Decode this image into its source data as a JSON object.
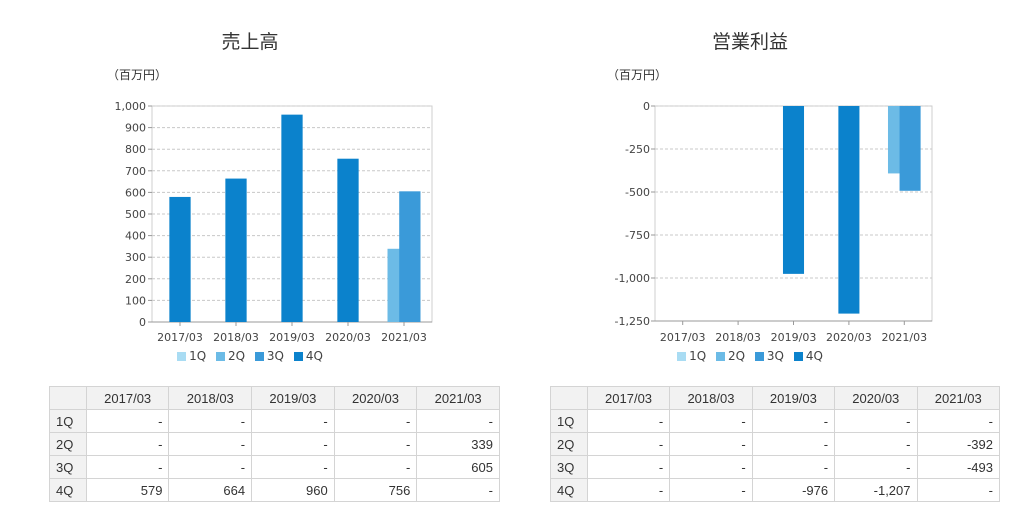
{
  "colors": {
    "q1": "#a9dcf3",
    "q2": "#6cbbe6",
    "q3": "#3a9ad9",
    "q4": "#0b82cc"
  },
  "charts": [
    {
      "title": "売上高",
      "unit": "（百万円）",
      "legend": [
        "1Q",
        "2Q",
        "3Q",
        "4Q"
      ],
      "table": {
        "headers": [
          "2017/03",
          "2018/03",
          "2019/03",
          "2020/03",
          "2021/03"
        ],
        "rows": [
          {
            "label": "1Q",
            "cells": [
              "-",
              "-",
              "-",
              "-",
              "-"
            ]
          },
          {
            "label": "2Q",
            "cells": [
              "-",
              "-",
              "-",
              "-",
              "339"
            ]
          },
          {
            "label": "3Q",
            "cells": [
              "-",
              "-",
              "-",
              "-",
              "605"
            ]
          },
          {
            "label": "4Q",
            "cells": [
              "579",
              "664",
              "960",
              "756",
              "-"
            ]
          }
        ]
      }
    },
    {
      "title": "営業利益",
      "unit": "（百万円）",
      "legend": [
        "1Q",
        "2Q",
        "3Q",
        "4Q"
      ],
      "table": {
        "headers": [
          "2017/03",
          "2018/03",
          "2019/03",
          "2020/03",
          "2021/03"
        ],
        "rows": [
          {
            "label": "1Q",
            "cells": [
              "-",
              "-",
              "-",
              "-",
              "-"
            ]
          },
          {
            "label": "2Q",
            "cells": [
              "-",
              "-",
              "-",
              "-",
              "-392"
            ]
          },
          {
            "label": "3Q",
            "cells": [
              "-",
              "-",
              "-",
              "-",
              "-493"
            ]
          },
          {
            "label": "4Q",
            "cells": [
              "-",
              "-",
              "-976",
              "-1,207",
              "-"
            ]
          }
        ]
      }
    }
  ],
  "chart_data": [
    {
      "type": "bar",
      "title": "売上高",
      "ylabel": "（百万円）",
      "categories": [
        "2017/03",
        "2018/03",
        "2019/03",
        "2020/03",
        "2021/03"
      ],
      "ylim": [
        0,
        1000
      ],
      "yticks": [
        0,
        100,
        200,
        300,
        400,
        500,
        600,
        700,
        800,
        900,
        1000
      ],
      "ytick_labels": [
        "0",
        "100",
        "200",
        "300",
        "400",
        "500",
        "600",
        "700",
        "800",
        "900",
        "1,000"
      ],
      "grid": true,
      "legend": "bottom",
      "series": [
        {
          "name": "1Q",
          "values": [
            null,
            null,
            null,
            null,
            null
          ]
        },
        {
          "name": "2Q",
          "values": [
            null,
            null,
            null,
            null,
            339
          ]
        },
        {
          "name": "3Q",
          "values": [
            null,
            null,
            null,
            null,
            605
          ]
        },
        {
          "name": "4Q",
          "values": [
            579,
            664,
            960,
            756,
            null
          ]
        }
      ]
    },
    {
      "type": "bar",
      "title": "営業利益",
      "ylabel": "（百万円）",
      "categories": [
        "2017/03",
        "2018/03",
        "2019/03",
        "2020/03",
        "2021/03"
      ],
      "ylim": [
        -1250,
        0
      ],
      "yticks": [
        0,
        -250,
        -500,
        -750,
        -1000,
        -1250
      ],
      "ytick_labels": [
        "0",
        "-250",
        "-500",
        "-750",
        "-1,000",
        "-1,250"
      ],
      "grid": true,
      "legend": "bottom",
      "series": [
        {
          "name": "1Q",
          "values": [
            null,
            null,
            null,
            null,
            null
          ]
        },
        {
          "name": "2Q",
          "values": [
            null,
            null,
            null,
            null,
            -392
          ]
        },
        {
          "name": "3Q",
          "values": [
            null,
            null,
            null,
            null,
            -493
          ]
        },
        {
          "name": "4Q",
          "values": [
            null,
            null,
            -976,
            -1207,
            null
          ]
        }
      ]
    }
  ]
}
